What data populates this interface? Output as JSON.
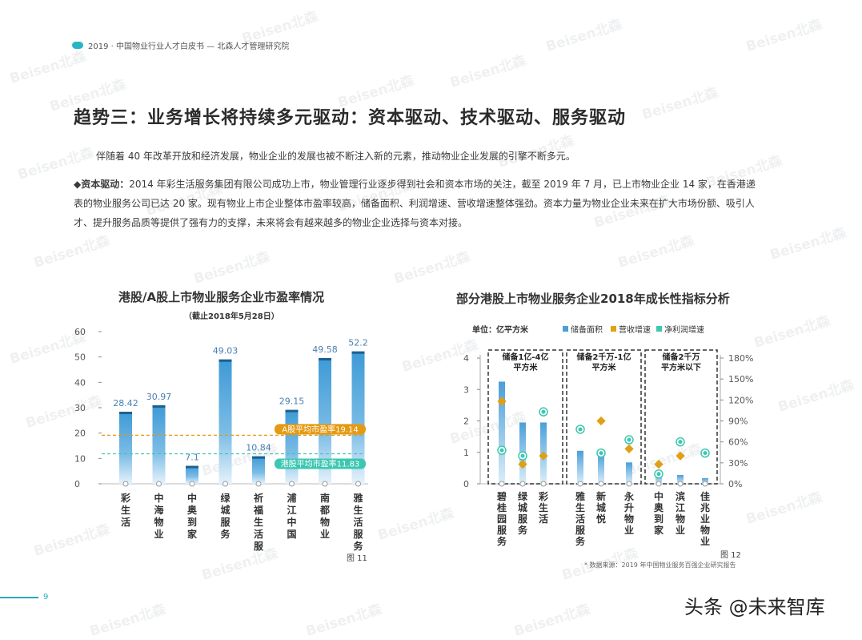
{
  "header": {
    "text": "2019 · 中国物业行业人才白皮书 — 北森人才管理研究院"
  },
  "watermark": "Beisen北森",
  "title": "趋势三：业务增长将持续多元驱动：资本驱动、技术驱动、服务驱动",
  "paragraphs": {
    "p1": "伴随着 40 年改革开放和经济发展，物业企业的发展也被不断注入新的元素，推动物业企业发展的引擎不断多元。",
    "p2_lead": "◆资本驱动：",
    "p2_body": "2014 年彩生活服务集团有限公司成功上市，物业管理行业逐步得到社会和资本市场的关注，截至 2019 年 7 月，已上市物业企业 14 家，在香港递表的物业服务公司已达 20 家。现有物业上市企业整体市盈率较高，储备面积、利润增速、营收增速整体强劲。资本力量为物业企业未来在扩大市场份额、吸引人才、提升服务品质等提供了强有力的支撑，未来将会有越来越多的物业企业选择与资本对接。"
  },
  "chart_data": [
    {
      "type": "bar",
      "title": "港股/A股上市物业服务企业市盈率情况",
      "subtitle": "（截止2018年5月28日）",
      "categories": [
        "彩生活",
        "中海物业",
        "中奥到家",
        "绿城服务",
        "祈福生活服务",
        "浦江中国",
        "南都物业",
        "雅生活服务"
      ],
      "values": [
        28.42,
        30.97,
        7.1,
        49.03,
        10.84,
        29.15,
        49.58,
        52.2
      ],
      "value_labels": [
        "28.42",
        "30.97",
        "7.1",
        "49.03",
        "10.84",
        "29.15",
        "49.58",
        "52.2"
      ],
      "yticks": [
        "0",
        "10",
        "20",
        "30",
        "40",
        "50",
        "60"
      ],
      "ylim": [
        0,
        60
      ],
      "reference_lines": [
        {
          "label": "A股平均市盈率19.14",
          "value": 19.14,
          "color": "#e49a14"
        },
        {
          "label": "港股平均市盈率11.83",
          "value": 11.83,
          "color": "#3cc7b0"
        }
      ],
      "bar_color": "#3d9ad6",
      "figure_label": "图 11"
    },
    {
      "type": "bar",
      "title": "部分港股上市物业服务企业2018年成长性指标分析",
      "unit_label": "单位：亿平方米",
      "legend": [
        "储备面积",
        "营收增速",
        "净利润增速"
      ],
      "legend_colors": [
        "#4a9fd8",
        "#e4a014",
        "#3cc7b0"
      ],
      "groups": [
        "储备1亿-4亿平方米",
        "储备2千万-1亿平方米",
        "储备2千万平方米以下"
      ],
      "categories": [
        "碧桂园服务",
        "绿城服务",
        "彩生活",
        "雅生活服务",
        "新城悦",
        "永升物业",
        "中奥到家",
        "滨江物业",
        "佳兆业物业"
      ],
      "group_of": [
        0,
        0,
        0,
        1,
        1,
        1,
        2,
        2,
        2
      ],
      "area": [
        3.25,
        1.95,
        1.95,
        1.05,
        0.95,
        0.68,
        0.32,
        0.28,
        0.18
      ],
      "revenue_growth": [
        1.18,
        0.28,
        0.4,
        null,
        0.9,
        0.5,
        0.28,
        0.4,
        null
      ],
      "profit_growth": [
        0.48,
        0.4,
        1.03,
        0.78,
        0.44,
        0.63,
        0.14,
        0.6,
        0.44
      ],
      "yticks_left": [
        "0",
        "1",
        "2",
        "3",
        "4"
      ],
      "ylim_left": [
        0,
        4
      ],
      "yticks_right": [
        "0%",
        "30%",
        "60%",
        "90%",
        "120%",
        "150%",
        "180%"
      ],
      "ylim_right": [
        0,
        1.8
      ],
      "figure_label": "图 12"
    }
  ],
  "source": "* 数据来源：2019 年中国物业服务百强企业研究报告",
  "page_number": "9",
  "brand": "头条 @未来智库"
}
